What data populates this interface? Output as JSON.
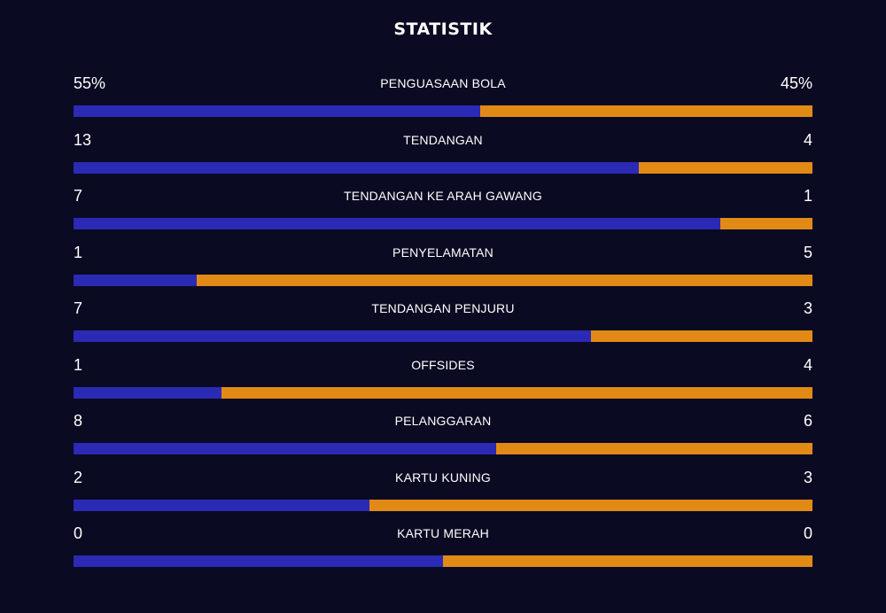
{
  "title": "STATISTIK",
  "colors": {
    "background": "#0a0a22",
    "home_bar": "#2a2ab5",
    "away_bar": "#e28a16",
    "text": "#ffffff"
  },
  "stats": [
    {
      "label": "PENGUASAAN BOLA",
      "home": "55%",
      "away": "45%",
      "home_share": 0.55
    },
    {
      "label": "TENDANGAN",
      "home": "13",
      "away": "4",
      "home_share": 0.7647
    },
    {
      "label": "TENDANGAN KE ARAH GAWANG",
      "home": "7",
      "away": "1",
      "home_share": 0.875
    },
    {
      "label": "PENYELAMATAN",
      "home": "1",
      "away": "5",
      "home_share": 0.1667
    },
    {
      "label": "TENDANGAN PENJURU",
      "home": "7",
      "away": "3",
      "home_share": 0.7
    },
    {
      "label": "OFFSIDES",
      "home": "1",
      "away": "4",
      "home_share": 0.2
    },
    {
      "label": "PELANGGARAN",
      "home": "8",
      "away": "6",
      "home_share": 0.5714
    },
    {
      "label": "KARTU KUNING",
      "home": "2",
      "away": "3",
      "home_share": 0.4
    },
    {
      "label": "KARTU MERAH",
      "home": "0",
      "away": "0",
      "home_share": 0.5
    }
  ]
}
